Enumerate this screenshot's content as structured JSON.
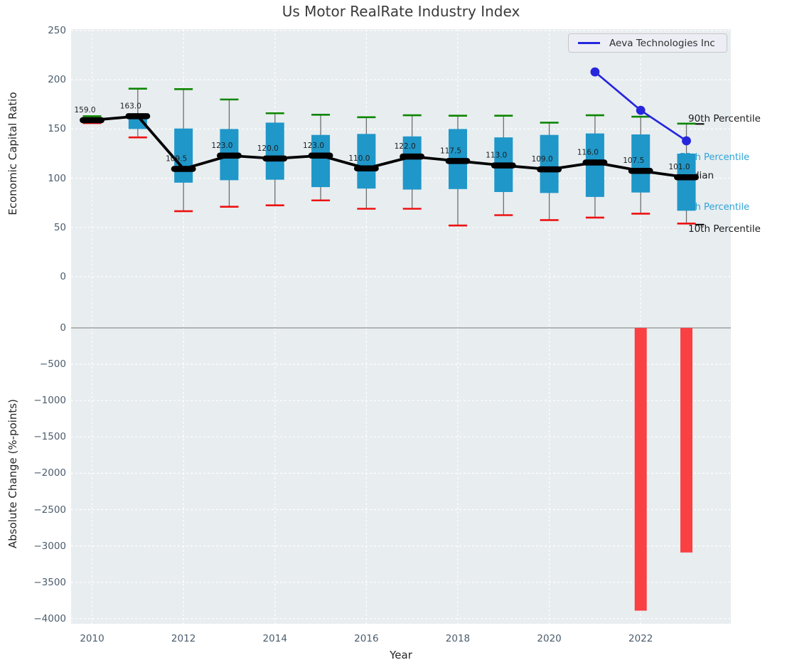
{
  "title": "Us Motor RealRate Industry Index",
  "legend": {
    "label": "Aeva Technologies Inc"
  },
  "axes": {
    "top_ylabel": "Economic Capital Ratio",
    "bottom_ylabel": "Absolute Change (%-points)",
    "xlabel": "Year",
    "top_yticks": [
      "250",
      "200",
      "150",
      "100",
      "50",
      "0"
    ],
    "bottom_yticks": [
      "0",
      "−500",
      "−1000",
      "−1500",
      "−2000",
      "−2500",
      "−3000",
      "−3500",
      "−4000"
    ],
    "xticks": [
      "2010",
      "2012",
      "2014",
      "2016",
      "2018",
      "2020",
      "2022"
    ]
  },
  "annotations": {
    "p90": "90th Percentile",
    "p75": "75th Percentile",
    "median": "Median",
    "p25": "25th Percentile",
    "p10": "10th Percentile"
  },
  "colors": {
    "box_fill": "#1f97c9",
    "cap_high": "#0c8600",
    "cap_low": "#ee1111",
    "median": "#000000",
    "aeva_line": "#2626dd",
    "bar_negative": "#f94043",
    "plot_bg": "#e8edf0",
    "grid": "#ffffff",
    "zero_line": "#ababab",
    "whisker": "#6e6e6e",
    "tick_text": "#4b5c6d",
    "percentile_text_blue": "#2ea4d6",
    "median_label_text": "#1d1d1d"
  },
  "chart_data": [
    {
      "type": "box",
      "title": "Us Motor RealRate Industry Index",
      "ylabel": "Economic Capital Ratio",
      "ylim": [
        0,
        250
      ],
      "grid": true,
      "legend_position": "upper right",
      "categories": [
        2010,
        2011,
        2012,
        2013,
        2014,
        2015,
        2016,
        2017,
        2018,
        2019,
        2020,
        2021,
        2022,
        2023
      ],
      "series": [
        {
          "name": "90th Percentile",
          "values": [
            163,
            191,
            190.5,
            180,
            166,
            164.5,
            162,
            164,
            163.5,
            163.5,
            156.5,
            164,
            162.5,
            155.5
          ]
        },
        {
          "name": "75th Percentile",
          "values": [
            160.5,
            163,
            150.5,
            150,
            156.5,
            144,
            145,
            142.5,
            150,
            141.5,
            144,
            145.5,
            144.5,
            125
          ]
        },
        {
          "name": "Median",
          "values": [
            159,
            163,
            109.5,
            123,
            120,
            123,
            110,
            122,
            117.5,
            113,
            109,
            116,
            107.5,
            101
          ]
        },
        {
          "name": "25th Percentile",
          "values": [
            157.5,
            150,
            95.5,
            98,
            98.5,
            91,
            89.5,
            88.5,
            89,
            86,
            85,
            81,
            85.5,
            67
          ]
        },
        {
          "name": "10th Percentile",
          "values": [
            156,
            141.5,
            66.5,
            71,
            72.5,
            77.5,
            69,
            69,
            52,
            62.5,
            57.5,
            60,
            64,
            54
          ]
        },
        {
          "name": "Aeva Technologies Inc",
          "x": [
            2021,
            2022,
            2023
          ],
          "values": [
            208,
            169,
            138
          ]
        }
      ],
      "median_labels": [
        "159.0",
        "163.0",
        "109.5",
        "123.0",
        "120.0",
        "123.0",
        "110.0",
        "122.0",
        "117.5",
        "113.0",
        "109.0",
        "116.0",
        "107.5",
        "101.0"
      ]
    },
    {
      "type": "bar",
      "ylabel": "Absolute Change (%-points)",
      "xlabel": "Year",
      "ylim": [
        -4000,
        0
      ],
      "categories": [
        2010,
        2011,
        2012,
        2013,
        2014,
        2015,
        2016,
        2017,
        2018,
        2019,
        2020,
        2021,
        2022,
        2023
      ],
      "values": [
        0,
        0,
        0,
        0,
        0,
        0,
        0,
        0,
        0,
        0,
        0,
        0,
        -3890,
        -3090
      ]
    }
  ]
}
